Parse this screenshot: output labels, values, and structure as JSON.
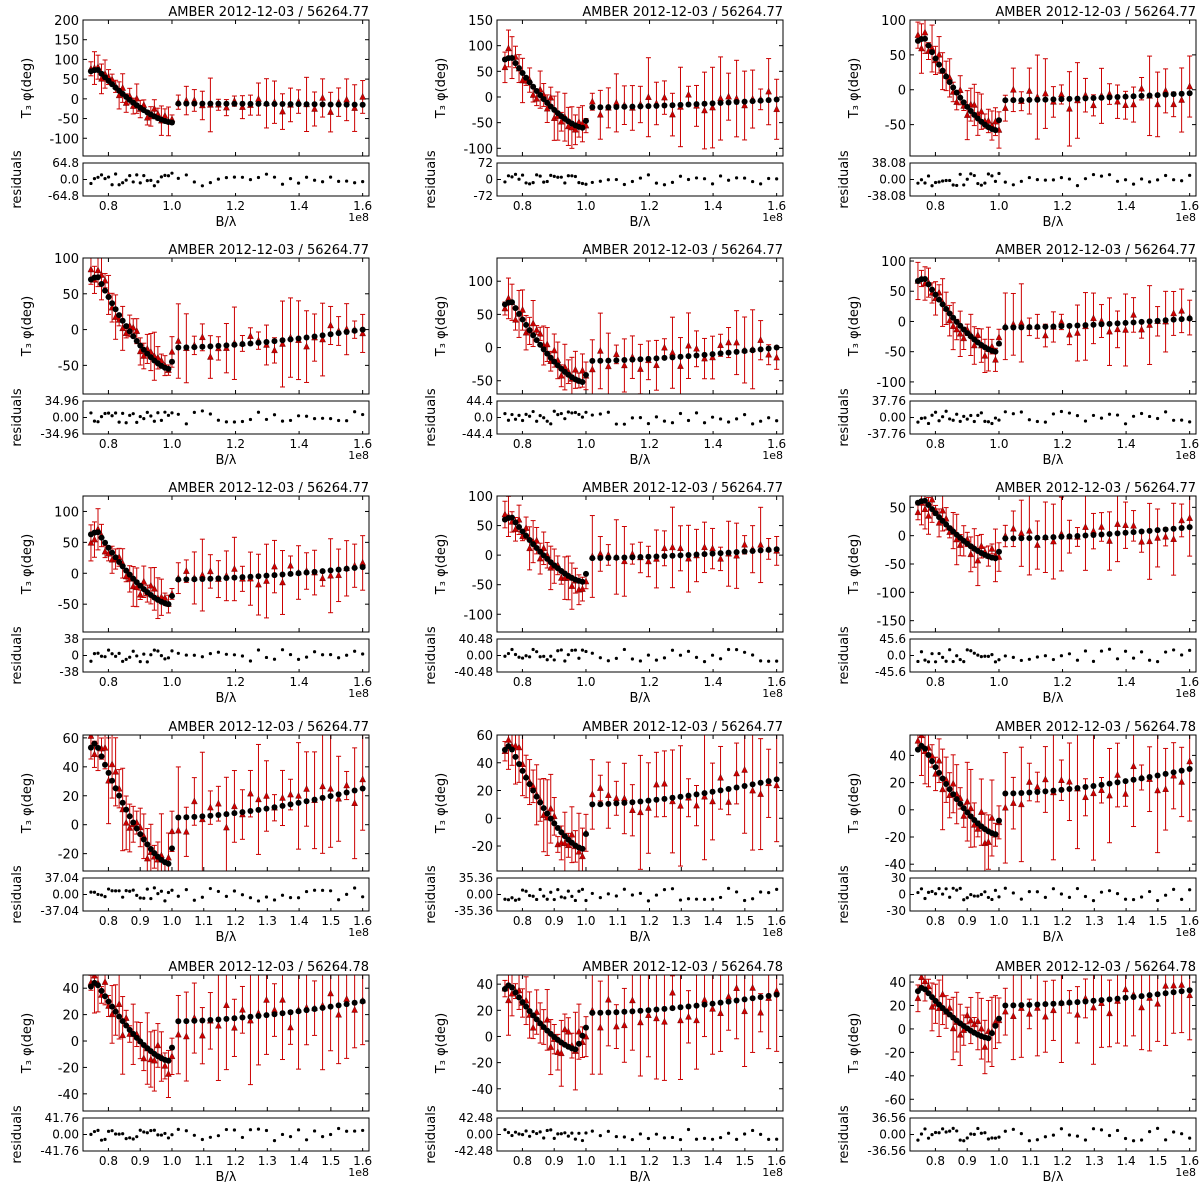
{
  "figure": {
    "main_ylabel": "T₃ φ(deg)",
    "res_ylabel": "residuals",
    "xlabel": "B/λ",
    "x_offset_text": "1e8",
    "colors": {
      "model": "#000000",
      "data": "#cc0000",
      "errorbar": "#cc0000"
    }
  },
  "chart_data": [
    {
      "type": "scatter",
      "title": "AMBER 2012-12-03 / 56264.77",
      "xlabel": "B/λ",
      "ylabel": "T₃ φ(deg)",
      "xlim": [
        0.72,
        1.62
      ],
      "ylim": [
        -145,
        200
      ],
      "yticks": [
        200,
        150,
        100,
        50,
        0,
        -50,
        -100
      ],
      "xticks": [
        0.8,
        1.0,
        1.2,
        1.4,
        1.6
      ],
      "xtick_labels": [
        "0.8",
        "1.0",
        "1.2",
        "1.4",
        "1.6"
      ],
      "model_peak": [
        0.765,
        75
      ],
      "model_min": [
        1.0,
        -60
      ],
      "model_jump": [
        1.02,
        -12
      ],
      "model_tail": [
        1.6,
        -15
      ],
      "data_noise": 20,
      "err_scale": 35,
      "res_ylim": [
        -64.8,
        64.8
      ],
      "res_yticks": [
        "64.8",
        "0.0",
        "-64.8"
      ],
      "residual_amp": 25
    },
    {
      "type": "scatter",
      "title": "AMBER 2012-12-03 / 56264.77",
      "xlabel": "B/λ",
      "ylabel": "T₃ φ(deg)",
      "xlim": [
        0.72,
        1.62
      ],
      "ylim": [
        -115,
        150
      ],
      "yticks": [
        150,
        100,
        50,
        0,
        -50,
        -100
      ],
      "xticks": [
        0.8,
        1.0,
        1.2,
        1.4,
        1.6
      ],
      "xtick_labels": [
        "0.8",
        "1.0",
        "1.2",
        "1.4",
        "1.6"
      ],
      "model_peak": [
        0.765,
        78
      ],
      "model_min": [
        0.99,
        -60
      ],
      "model_jump": [
        1.02,
        -20
      ],
      "model_tail": [
        1.6,
        -5
      ],
      "data_noise": 20,
      "err_scale": 40,
      "res_ylim": [
        -72,
        72
      ],
      "res_yticks": [
        "72",
        "0",
        "-72"
      ],
      "residual_amp": 25
    },
    {
      "type": "scatter",
      "title": "AMBER 2012-12-03 / 56264.77",
      "xlabel": "B/λ",
      "ylabel": "T₃ φ(deg)",
      "xlim": [
        0.72,
        1.62
      ],
      "ylim": [
        -95,
        100
      ],
      "yticks": [
        100,
        50,
        0,
        -50
      ],
      "xticks": [
        0.8,
        1.0,
        1.2,
        1.4,
        1.6
      ],
      "xtick_labels": [
        "0.8",
        "1.0",
        "1.2",
        "1.4",
        "1.6"
      ],
      "model_peak": [
        0.765,
        75
      ],
      "model_min": [
        0.99,
        -58
      ],
      "model_jump": [
        1.02,
        -15
      ],
      "model_tail": [
        1.6,
        -5
      ],
      "data_noise": 15,
      "err_scale": 30,
      "res_ylim": [
        -38.08,
        38.08
      ],
      "res_yticks": [
        "38.08",
        "0.00",
        "-38.08"
      ],
      "residual_amp": 15
    },
    {
      "type": "scatter",
      "title": "AMBER 2012-12-03 / 56264.77",
      "xlabel": "B/λ",
      "ylabel": "T₃ φ(deg)",
      "xlim": [
        0.72,
        1.62
      ],
      "ylim": [
        -90,
        100
      ],
      "yticks": [
        100,
        50,
        0,
        -50
      ],
      "xticks": [
        0.8,
        1.0,
        1.2,
        1.4,
        1.6
      ],
      "xtick_labels": [
        "0.8",
        "1.0",
        "1.2",
        "1.4",
        "1.6"
      ],
      "model_peak": [
        0.765,
        75
      ],
      "model_min": [
        0.99,
        -55
      ],
      "model_jump": [
        1.02,
        -25
      ],
      "model_tail": [
        1.6,
        0
      ],
      "data_noise": 15,
      "err_scale": 30,
      "res_ylim": [
        -34.96,
        34.96
      ],
      "res_yticks": [
        "34.96",
        "0.00",
        "-34.96"
      ],
      "residual_amp": 14
    },
    {
      "type": "scatter",
      "title": "AMBER 2012-12-03 / 56264.77",
      "xlabel": "B/λ",
      "ylabel": "T₃ φ(deg)",
      "xlim": [
        0.72,
        1.62
      ],
      "ylim": [
        -70,
        135
      ],
      "yticks": [
        100,
        50,
        0,
        -50
      ],
      "xticks": [
        0.8,
        1.0,
        1.2,
        1.4,
        1.6
      ],
      "xtick_labels": [
        "0.8",
        "1.0",
        "1.2",
        "1.4",
        "1.6"
      ],
      "model_peak": [
        0.765,
        70
      ],
      "model_min": [
        0.99,
        -52
      ],
      "model_jump": [
        1.02,
        -20
      ],
      "model_tail": [
        1.6,
        0
      ],
      "data_noise": 18,
      "err_scale": 30,
      "res_ylim": [
        -44.4,
        44.4
      ],
      "res_yticks": [
        "44.4",
        "0.0",
        "-44.4"
      ],
      "residual_amp": 18
    },
    {
      "type": "scatter",
      "title": "AMBER 2012-12-03 / 56264.77",
      "xlabel": "B/λ",
      "ylabel": "T₃ φ(deg)",
      "xlim": [
        0.72,
        1.62
      ],
      "ylim": [
        -120,
        105
      ],
      "yticks": [
        100,
        50,
        0,
        -50,
        -100
      ],
      "xticks": [
        0.8,
        1.0,
        1.2,
        1.4,
        1.6
      ],
      "xtick_labels": [
        "0.8",
        "1.0",
        "1.2",
        "1.4",
        "1.6"
      ],
      "model_peak": [
        0.765,
        72
      ],
      "model_min": [
        0.99,
        -50
      ],
      "model_jump": [
        1.02,
        -10
      ],
      "model_tail": [
        1.6,
        5
      ],
      "data_noise": 15,
      "err_scale": 35,
      "res_ylim": [
        -37.76,
        37.76
      ],
      "res_yticks": [
        "37.76",
        "0.00",
        "-37.76"
      ],
      "residual_amp": 15
    },
    {
      "type": "scatter",
      "title": "AMBER 2012-12-03 / 56264.77",
      "xlabel": "B/λ",
      "ylabel": "T₃ φ(deg)",
      "xlim": [
        0.72,
        1.62
      ],
      "ylim": [
        -95,
        125
      ],
      "yticks": [
        100,
        50,
        0,
        -50
      ],
      "xticks": [
        0.8,
        1.0,
        1.2,
        1.4,
        1.6
      ],
      "xtick_labels": [
        "0.8",
        "1.0",
        "1.2",
        "1.4",
        "1.6"
      ],
      "model_peak": [
        0.765,
        68
      ],
      "model_min": [
        0.99,
        -50
      ],
      "model_jump": [
        1.02,
        -10
      ],
      "model_tail": [
        1.6,
        10
      ],
      "data_noise": 15,
      "err_scale": 30,
      "res_ylim": [
        -38,
        38
      ],
      "res_yticks": [
        "38",
        "0",
        "-38"
      ],
      "residual_amp": 15
    },
    {
      "type": "scatter",
      "title": "AMBER 2012-12-03 / 56264.77",
      "xlabel": "B/λ",
      "ylabel": "T₃ φ(deg)",
      "xlim": [
        0.72,
        1.62
      ],
      "ylim": [
        -130,
        100
      ],
      "yticks": [
        100,
        50,
        0,
        -50,
        -100
      ],
      "xticks": [
        0.8,
        1.0,
        1.2,
        1.4,
        1.6
      ],
      "xtick_labels": [
        "0.8",
        "1.0",
        "1.2",
        "1.4",
        "1.6"
      ],
      "model_peak": [
        0.765,
        65
      ],
      "model_min": [
        0.99,
        -45
      ],
      "model_jump": [
        1.02,
        -5
      ],
      "model_tail": [
        1.6,
        10
      ],
      "data_noise": 15,
      "err_scale": 35,
      "res_ylim": [
        -40.48,
        40.48
      ],
      "res_yticks": [
        "40.48",
        "0.00",
        "-40.48"
      ],
      "residual_amp": 16
    },
    {
      "type": "scatter",
      "title": "AMBER 2012-12-03 / 56264.77",
      "xlabel": "B/λ",
      "ylabel": "T₃ φ(deg)",
      "xlim": [
        0.72,
        1.62
      ],
      "ylim": [
        -170,
        70
      ],
      "yticks": [
        50,
        0,
        -50,
        -100,
        -150
      ],
      "xticks": [
        0.8,
        1.0,
        1.2,
        1.4,
        1.6
      ],
      "xtick_labels": [
        "0.8",
        "1.0",
        "1.2",
        "1.4",
        "1.6"
      ],
      "model_peak": [
        0.765,
        63
      ],
      "model_min": [
        0.99,
        -40
      ],
      "model_jump": [
        1.02,
        -5
      ],
      "model_tail": [
        1.6,
        15
      ],
      "data_noise": 20,
      "err_scale": 40,
      "res_ylim": [
        -45.6,
        45.6
      ],
      "res_yticks": [
        "45.6",
        "0.0",
        "-45.6"
      ],
      "residual_amp": 18
    },
    {
      "type": "scatter",
      "title": "AMBER 2012-12-03 / 56264.77",
      "xlabel": "B/λ",
      "ylabel": "T₃ φ(deg)",
      "xlim": [
        0.72,
        1.62
      ],
      "ylim": [
        -32,
        62
      ],
      "yticks": [
        60,
        40,
        20,
        0,
        -20
      ],
      "xticks": [
        0.8,
        0.9,
        1.0,
        1.1,
        1.2,
        1.3,
        1.4,
        1.5,
        1.6
      ],
      "xtick_labels": [
        "0.8",
        "0.9",
        "1.0",
        "1.1",
        "1.2",
        "1.3",
        "1.4",
        "1.5",
        "1.6"
      ],
      "model_peak": [
        0.76,
        57
      ],
      "model_min": [
        0.99,
        -27
      ],
      "model_jump": [
        1.02,
        5
      ],
      "model_tail": [
        1.6,
        25
      ],
      "data_noise": 12,
      "err_scale": 25,
      "res_ylim": [
        -37.04,
        37.04
      ],
      "res_yticks": [
        "37.04",
        "0.00",
        "-37.04"
      ],
      "residual_amp": 15
    },
    {
      "type": "scatter",
      "title": "AMBER 2012-12-03 / 56264.77",
      "xlabel": "B/λ",
      "ylabel": "T₃ φ(deg)",
      "xlim": [
        0.72,
        1.62
      ],
      "ylim": [
        -38,
        60
      ],
      "yticks": [
        60,
        40,
        20,
        0,
        -20
      ],
      "xticks": [
        0.8,
        0.9,
        1.0,
        1.1,
        1.2,
        1.3,
        1.4,
        1.5,
        1.6
      ],
      "xtick_labels": [
        "0.8",
        "0.9",
        "1.0",
        "1.1",
        "1.2",
        "1.3",
        "1.4",
        "1.5",
        "1.6"
      ],
      "model_peak": [
        0.76,
        53
      ],
      "model_min": [
        0.99,
        -22
      ],
      "model_jump": [
        1.02,
        10
      ],
      "model_tail": [
        1.6,
        28
      ],
      "data_noise": 12,
      "err_scale": 25,
      "res_ylim": [
        -35.36,
        35.36
      ],
      "res_yticks": [
        "35.36",
        "0.00",
        "-35.36"
      ],
      "residual_amp": 14
    },
    {
      "type": "scatter",
      "title": "AMBER 2012-12-03 / 56264.78",
      "xlabel": "B/λ",
      "ylabel": "T₃ φ(deg)",
      "xlim": [
        0.72,
        1.62
      ],
      "ylim": [
        -45,
        55
      ],
      "yticks": [
        40,
        20,
        0,
        -20,
        -40
      ],
      "xticks": [
        0.8,
        0.9,
        1.0,
        1.1,
        1.2,
        1.3,
        1.4,
        1.5,
        1.6
      ],
      "xtick_labels": [
        "0.8",
        "0.9",
        "1.0",
        "1.1",
        "1.2",
        "1.3",
        "1.4",
        "1.5",
        "1.6"
      ],
      "model_peak": [
        0.76,
        48
      ],
      "model_min": [
        0.99,
        -18
      ],
      "model_jump": [
        1.02,
        12
      ],
      "model_tail": [
        1.6,
        30
      ],
      "data_noise": 12,
      "err_scale": 25,
      "res_ylim": [
        -30,
        30
      ],
      "res_yticks": [
        "30",
        "0",
        "-30"
      ],
      "residual_amp": 12
    },
    {
      "type": "scatter",
      "title": "AMBER 2012-12-03 / 56264.78",
      "xlabel": "B/λ",
      "ylabel": "T₃ φ(deg)",
      "xlim": [
        0.72,
        1.62
      ],
      "ylim": [
        -53,
        50
      ],
      "yticks": [
        40,
        20,
        0,
        -20,
        -40
      ],
      "xticks": [
        0.8,
        0.9,
        1.0,
        1.1,
        1.2,
        1.3,
        1.4,
        1.5,
        1.6
      ],
      "xtick_labels": [
        "0.8",
        "0.9",
        "1.0",
        "1.1",
        "1.2",
        "1.3",
        "1.4",
        "1.5",
        "1.6"
      ],
      "model_peak": [
        0.76,
        45
      ],
      "model_min": [
        0.99,
        -15
      ],
      "model_jump": [
        1.02,
        15
      ],
      "model_tail": [
        1.6,
        30
      ],
      "data_noise": 12,
      "err_scale": 25,
      "res_ylim": [
        -41.76,
        41.76
      ],
      "res_yticks": [
        "41.76",
        "0.00",
        "-41.76"
      ],
      "residual_amp": 16
    },
    {
      "type": "scatter",
      "title": "AMBER 2012-12-03 / 56264.78",
      "xlabel": "B/λ",
      "ylabel": "T₃ φ(deg)",
      "xlim": [
        0.72,
        1.62
      ],
      "ylim": [
        -57,
        47
      ],
      "yticks": [
        40,
        20,
        0,
        -20,
        -40
      ],
      "xticks": [
        0.8,
        0.9,
        1.0,
        1.1,
        1.2,
        1.3,
        1.4,
        1.5,
        1.6
      ],
      "xtick_labels": [
        "0.8",
        "0.9",
        "1.0",
        "1.1",
        "1.2",
        "1.3",
        "1.4",
        "1.5",
        "1.6"
      ],
      "model_peak": [
        0.76,
        40
      ],
      "model_min": [
        0.97,
        -10
      ],
      "model_jump": [
        1.02,
        18
      ],
      "model_tail": [
        1.6,
        32
      ],
      "data_noise": 12,
      "err_scale": 25,
      "res_ylim": [
        -42.48,
        42.48
      ],
      "res_yticks": [
        "42.48",
        "0.00",
        "-42.48"
      ],
      "residual_amp": 16
    },
    {
      "type": "scatter",
      "title": "AMBER 2012-12-03 / 56264.78",
      "xlabel": "B/λ",
      "ylabel": "T₃ φ(deg)",
      "xlim": [
        0.72,
        1.62
      ],
      "ylim": [
        -70,
        46
      ],
      "yticks": [
        40,
        20,
        0,
        -20,
        -40,
        -60
      ],
      "xticks": [
        0.8,
        0.9,
        1.0,
        1.1,
        1.2,
        1.3,
        1.4,
        1.5,
        1.6
      ],
      "xtick_labels": [
        "0.8",
        "0.9",
        "1.0",
        "1.1",
        "1.2",
        "1.3",
        "1.4",
        "1.5",
        "1.6"
      ],
      "model_peak": [
        0.76,
        36
      ],
      "model_min": [
        0.97,
        -8
      ],
      "model_jump": [
        1.02,
        20
      ],
      "model_tail": [
        1.6,
        33
      ],
      "data_noise": 12,
      "err_scale": 25,
      "res_ylim": [
        -36.56,
        36.56
      ],
      "res_yticks": [
        "36.56",
        "0.00",
        "-36.56"
      ],
      "residual_amp": 14
    }
  ]
}
